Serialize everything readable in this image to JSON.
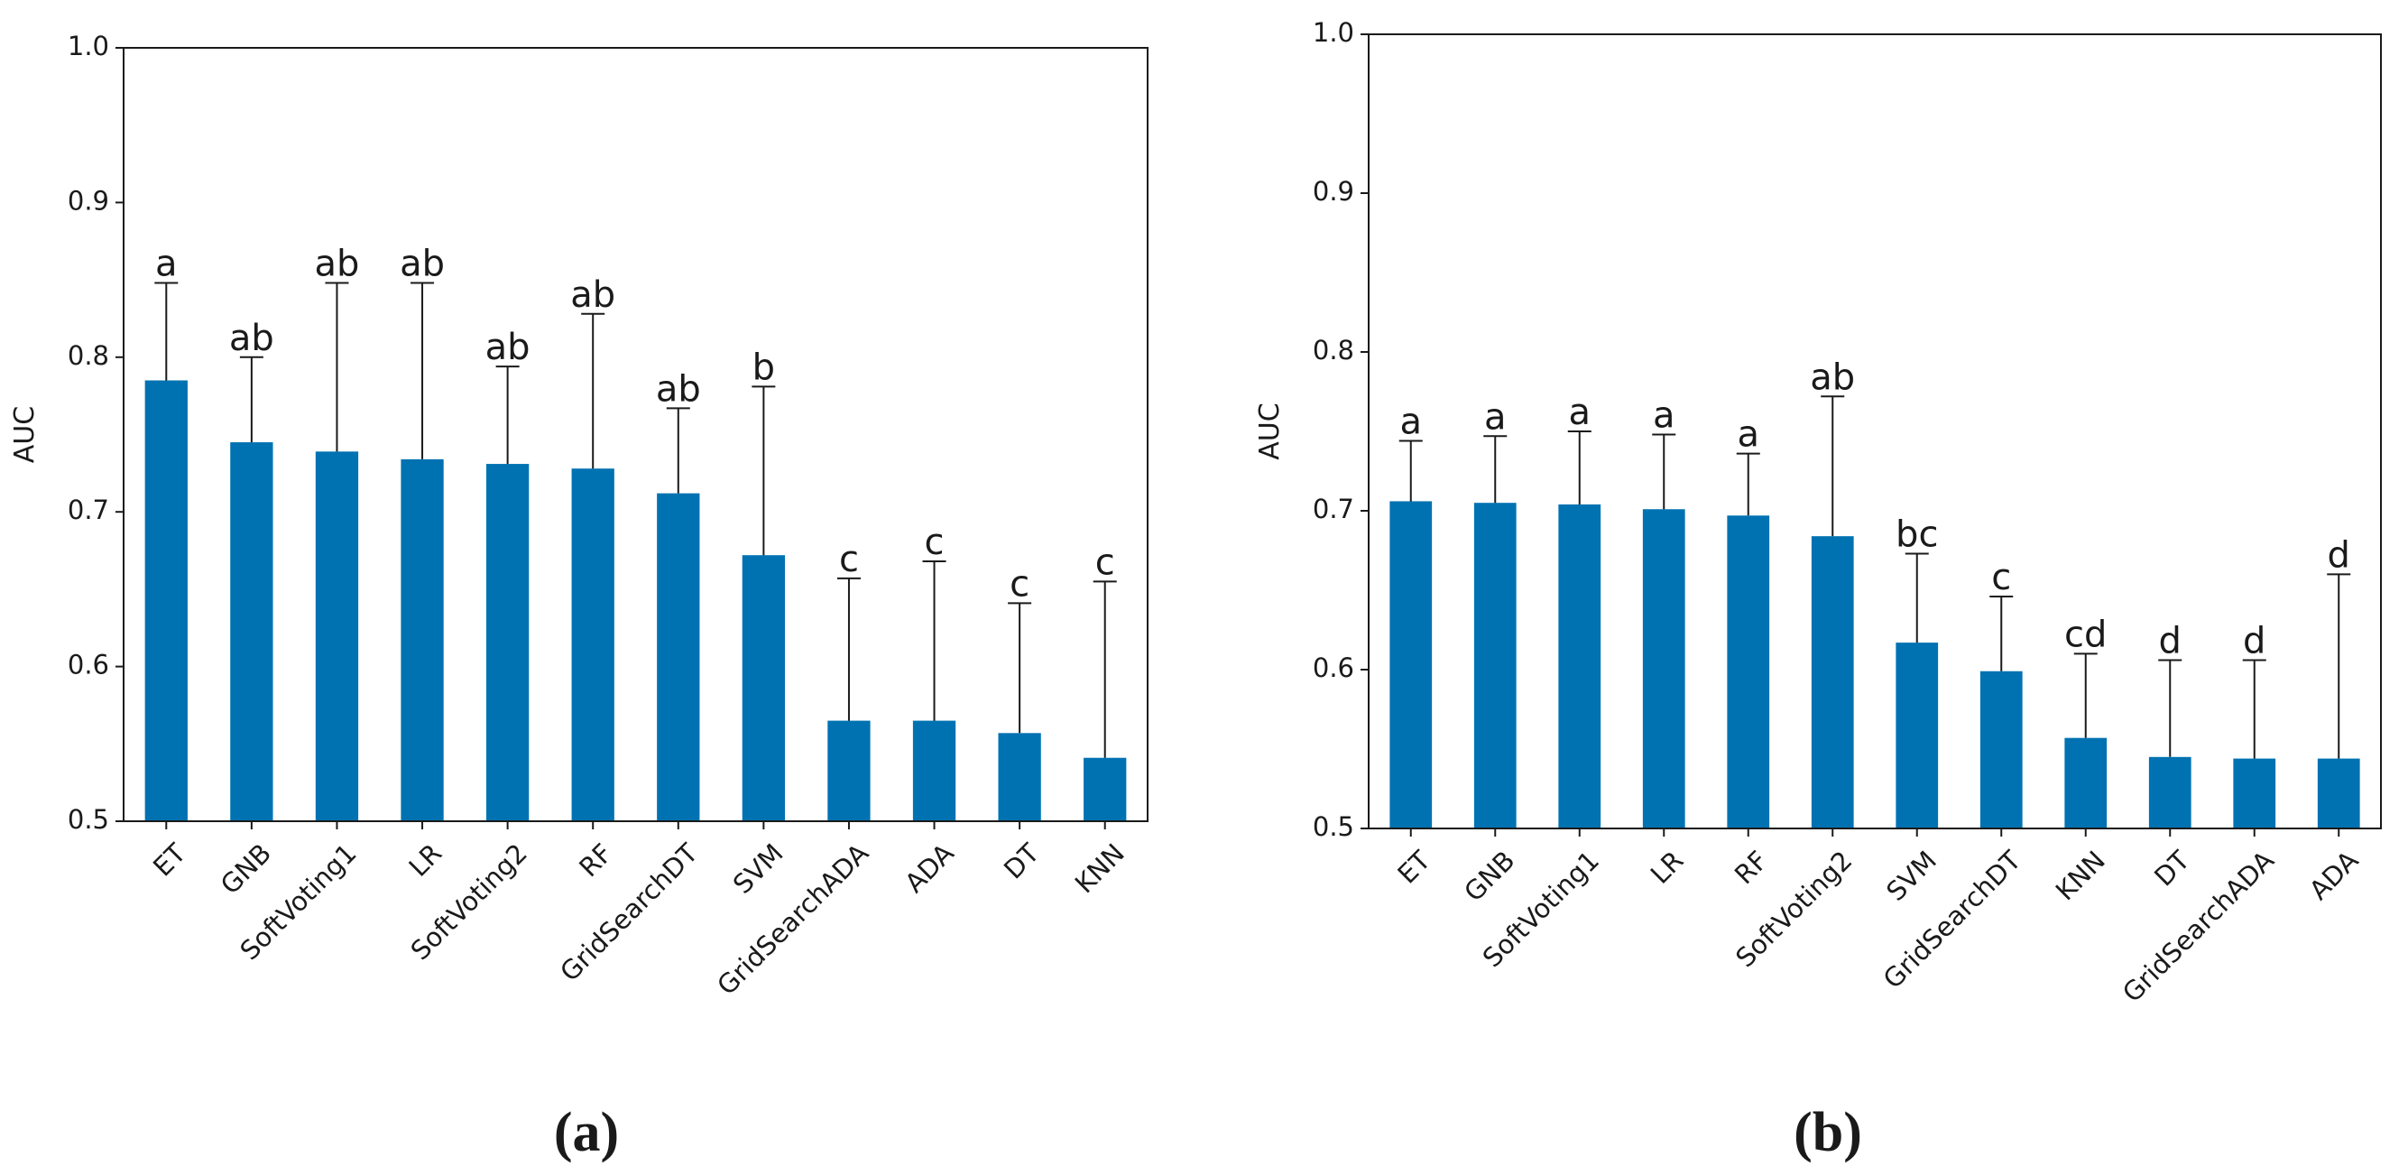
{
  "chart_data": [
    {
      "type": "bar",
      "panel_label": "(a)",
      "ylabel": "AUC",
      "xlabel": "",
      "ylim": [
        0.5,
        1.0
      ],
      "yticks": [
        "0.5",
        "0.6",
        "0.7",
        "0.8",
        "0.9",
        "1.0"
      ],
      "color": "#0072b2",
      "categories": [
        "ET",
        "GNB",
        "SoftVoting1",
        "LR",
        "SoftVoting2",
        "RF",
        "GridSearchDT",
        "SVM",
        "GridSearchADA",
        "ADA",
        "DT",
        "KNN"
      ],
      "values": [
        0.785,
        0.745,
        0.739,
        0.734,
        0.731,
        0.728,
        0.712,
        0.672,
        0.565,
        0.565,
        0.557,
        0.541
      ],
      "error_upper": [
        0.848,
        0.8,
        0.848,
        0.848,
        0.794,
        0.828,
        0.767,
        0.781,
        0.657,
        0.668,
        0.641,
        0.655
      ],
      "letters": [
        "a",
        "ab",
        "ab",
        "ab",
        "ab",
        "ab",
        "ab",
        "b",
        "c",
        "c",
        "c",
        "c"
      ]
    },
    {
      "type": "bar",
      "panel_label": "(b)",
      "ylabel": "AUC",
      "xlabel": "",
      "ylim": [
        0.5,
        1.0
      ],
      "yticks": [
        "0.5",
        "0.6",
        "0.7",
        "0.8",
        "0.9",
        "1.0"
      ],
      "color": "#0072b2",
      "categories": [
        "ET",
        "GNB",
        "SoftVoting1",
        "LR",
        "RF",
        "SoftVoting2",
        "SVM",
        "GridSearchDT",
        "KNN",
        "DT",
        "GridSearchADA",
        "ADA"
      ],
      "values": [
        0.706,
        0.705,
        0.704,
        0.701,
        0.697,
        0.684,
        0.617,
        0.599,
        0.557,
        0.545,
        0.544,
        0.544
      ],
      "error_upper": [
        0.744,
        0.747,
        0.75,
        0.748,
        0.736,
        0.772,
        0.673,
        0.646,
        0.61,
        0.606,
        0.606,
        0.66
      ],
      "letters": [
        "a",
        "a",
        "a",
        "a",
        "a",
        "ab",
        "bc",
        "c",
        "cd",
        "d",
        "d",
        "d"
      ]
    }
  ]
}
